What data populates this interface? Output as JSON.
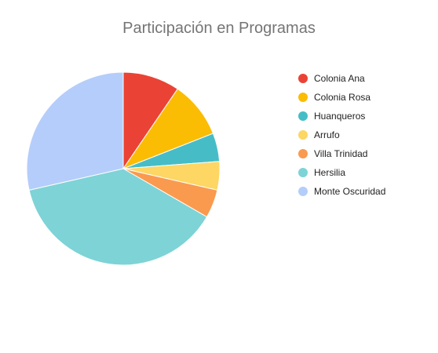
{
  "chart_data": {
    "type": "pie",
    "title": "Participación en Programas",
    "legend_position": "right",
    "slices": [
      {
        "label": "Colonia Ana",
        "value": 10,
        "color": "#EA4335"
      },
      {
        "label": "Colonia Rosa",
        "value": 10,
        "color": "#FBBC04"
      },
      {
        "label": "Huanqueros",
        "value": 5,
        "color": "#46BDC6"
      },
      {
        "label": "Arrufo",
        "value": 5,
        "color": "#FDD663"
      },
      {
        "label": "Villa Trinidad",
        "value": 5,
        "color": "#FA9A4F"
      },
      {
        "label": "Hersilia",
        "value": 40,
        "color": "#7ED3D6"
      },
      {
        "label": "Monte Oscuridad",
        "value": 30,
        "color": "#B5CDFA"
      }
    ]
  }
}
